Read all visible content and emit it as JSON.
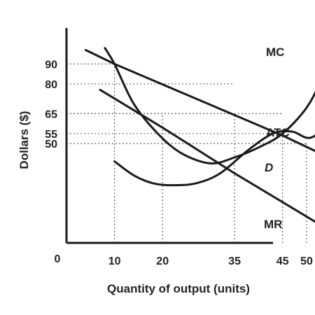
{
  "chart_data": {
    "type": "line",
    "title": "",
    "xlabel": "Quantity of output (units)",
    "ylabel": "Dollars ($)",
    "origin_label": "0",
    "x_ticks": [
      10,
      20,
      35,
      45,
      50
    ],
    "y_ticks": [
      90,
      80,
      65,
      55,
      50
    ],
    "xlim": [
      0,
      62
    ],
    "ylim": [
      0,
      110
    ],
    "grid": false,
    "series": [
      {
        "name": "D",
        "label_style": "italic",
        "x": [
          4,
          10,
          45,
          52
        ],
        "y": [
          97,
          90,
          54,
          46
        ]
      },
      {
        "name": "MR",
        "x": [
          7,
          20,
          35,
          55
        ],
        "y": [
          77,
          58,
          35,
          6
        ]
      },
      {
        "name": "MC",
        "x": [
          8,
          10,
          14,
          19,
          24,
          30,
          35,
          40,
          45,
          50,
          53,
          56
        ],
        "y": [
          98,
          90,
          70,
          55,
          45,
          40,
          43,
          48,
          55,
          68,
          82,
          100
        ]
      },
      {
        "name": "ATC",
        "x": [
          10,
          14,
          18,
          22,
          27,
          32,
          38,
          43,
          47,
          51,
          56
        ],
        "y": [
          41,
          34,
          30,
          29,
          30,
          35,
          47,
          55,
          56,
          53,
          63
        ]
      }
    ],
    "guides": [
      {
        "x": 10,
        "y": 90
      },
      {
        "x": 20,
        "y": 65
      },
      {
        "x": 35,
        "y": 65
      },
      {
        "x": 45,
        "y": 55
      },
      {
        "x": 50,
        "y": 50
      }
    ],
    "reference_lines": [
      {
        "y": 80,
        "x_to": 35
      },
      {
        "y": 65,
        "x_to": 45
      }
    ]
  }
}
